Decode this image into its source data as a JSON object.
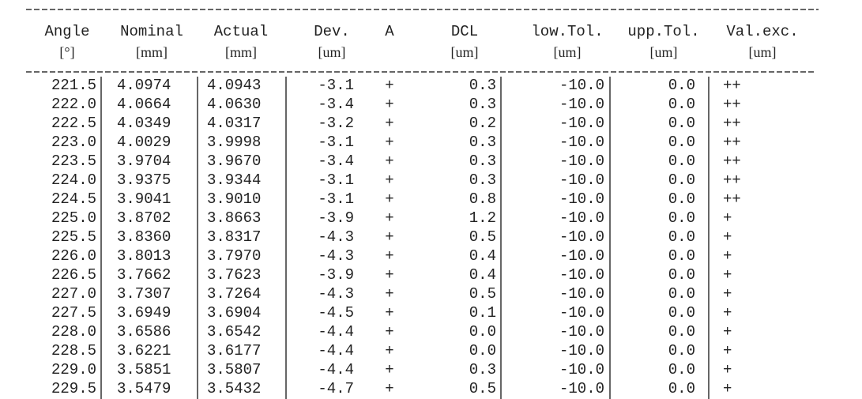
{
  "table": {
    "columns": [
      {
        "name": "Angle",
        "unit": "[°]"
      },
      {
        "name": "Nominal",
        "unit": "[mm]"
      },
      {
        "name": "Actual",
        "unit": "[mm]"
      },
      {
        "name": "Dev.",
        "unit": "[um]"
      },
      {
        "name": "A",
        "unit": null
      },
      {
        "name": "DCL",
        "unit": "[um]"
      },
      {
        "name": "low.Tol.",
        "unit": "[um]"
      },
      {
        "name": "upp.Tol.",
        "unit": "[um]"
      },
      {
        "name": "Val.exc.",
        "unit": "[um]"
      }
    ],
    "rows": [
      [
        "221.5",
        "4.0974",
        "4.0943",
        "-3.1",
        "+",
        "0.3",
        "-10.0",
        "0.0",
        "++"
      ],
      [
        "222.0",
        "4.0664",
        "4.0630",
        "-3.4",
        "+",
        "0.3",
        "-10.0",
        "0.0",
        "++"
      ],
      [
        "222.5",
        "4.0349",
        "4.0317",
        "-3.2",
        "+",
        "0.2",
        "-10.0",
        "0.0",
        "++"
      ],
      [
        "223.0",
        "4.0029",
        "3.9998",
        "-3.1",
        "+",
        "0.3",
        "-10.0",
        "0.0",
        "++"
      ],
      [
        "223.5",
        "3.9704",
        "3.9670",
        "-3.4",
        "+",
        "0.3",
        "-10.0",
        "0.0",
        "++"
      ],
      [
        "224.0",
        "3.9375",
        "3.9344",
        "-3.1",
        "+",
        "0.3",
        "-10.0",
        "0.0",
        "++"
      ],
      [
        "224.5",
        "3.9041",
        "3.9010",
        "-3.1",
        "+",
        "0.8",
        "-10.0",
        "0.0",
        "++"
      ],
      [
        "225.0",
        "3.8702",
        "3.8663",
        "-3.9",
        "+",
        "1.2",
        "-10.0",
        "0.0",
        "+"
      ],
      [
        "225.5",
        "3.8360",
        "3.8317",
        "-4.3",
        "+",
        "0.5",
        "-10.0",
        "0.0",
        "+"
      ],
      [
        "226.0",
        "3.8013",
        "3.7970",
        "-4.3",
        "+",
        "0.4",
        "-10.0",
        "0.0",
        "+"
      ],
      [
        "226.5",
        "3.7662",
        "3.7623",
        "-3.9",
        "+",
        "0.4",
        "-10.0",
        "0.0",
        "+"
      ],
      [
        "227.0",
        "3.7307",
        "3.7264",
        "-4.3",
        "+",
        "0.5",
        "-10.0",
        "0.0",
        "+"
      ],
      [
        "227.5",
        "3.6949",
        "3.6904",
        "-4.5",
        "+",
        "0.1",
        "-10.0",
        "0.0",
        "+"
      ],
      [
        "228.0",
        "3.6586",
        "3.6542",
        "-4.4",
        "+",
        "0.0",
        "-10.0",
        "0.0",
        "+"
      ],
      [
        "228.5",
        "3.6221",
        "3.6177",
        "-4.4",
        "+",
        "0.0",
        "-10.0",
        "0.0",
        "+"
      ],
      [
        "229.0",
        "3.5851",
        "3.5807",
        "-4.4",
        "+",
        "0.3",
        "-10.0",
        "0.0",
        "+"
      ],
      [
        "229.5",
        "3.5479",
        "3.5432",
        "-4.7",
        "+",
        "0.5",
        "-10.0",
        "0.0",
        "+"
      ]
    ]
  }
}
